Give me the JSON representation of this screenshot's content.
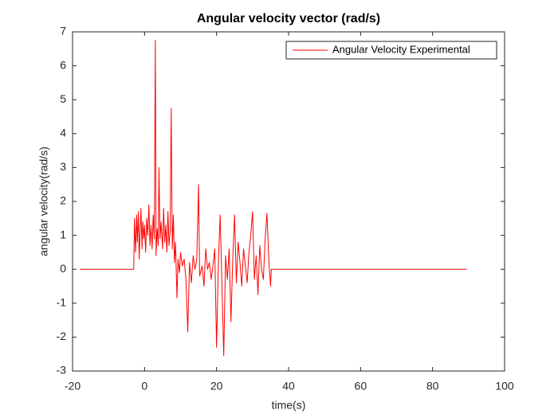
{
  "chart_data": {
    "type": "line",
    "title": "Angular velocity vector (rad/s)",
    "x_label": "time(s)",
    "y_label": "angular velocity(rad/s)",
    "x": [
      -18,
      -3,
      -2.8,
      -2.5,
      -2.2,
      -2,
      -1.7,
      -1.5,
      -1.2,
      -1,
      -0.7,
      -0.5,
      -0.2,
      0,
      0.3,
      0.6,
      0.9,
      1.2,
      1.5,
      1.8,
      2.1,
      2.4,
      2.7,
      3,
      3.2,
      3.5,
      3.8,
      4,
      4.3,
      4.6,
      5,
      5.3,
      5.6,
      5.9,
      6.2,
      6.5,
      6.8,
      7.1,
      7.4,
      7.7,
      8,
      8.3,
      8.6,
      9,
      9.3,
      9.7,
      10,
      10.5,
      11,
      11.5,
      12,
      12.5,
      13,
      13.5,
      14,
      14.5,
      15,
      15.3,
      16,
      16.5,
      17,
      17.5,
      18,
      18.5,
      19,
      19.5,
      20,
      20.5,
      21,
      21.5,
      22,
      22.5,
      23,
      23.5,
      24,
      24.5,
      25,
      25.5,
      26,
      26.5,
      27,
      27.5,
      28,
      28.5,
      29,
      29.5,
      30,
      30.5,
      31,
      31.5,
      32,
      32.5,
      33,
      33.5,
      34,
      34.5,
      35,
      35.2,
      89.5
    ],
    "series": [
      {
        "name": "Angular Velocity Experimental",
        "color": "#ff0000",
        "values": [
          0,
          0,
          1.5,
          0.5,
          1.6,
          0.8,
          1.7,
          0.3,
          1.2,
          1.8,
          0.6,
          1.4,
          0.9,
          1.3,
          0.5,
          1.5,
          1.0,
          1.9,
          0.7,
          1.3,
          0.6,
          1.6,
          0.9,
          6.75,
          0.4,
          1.2,
          0.7,
          3.0,
          0.9,
          1.4,
          0.6,
          1.8,
          0.8,
          1.3,
          0.5,
          1.7,
          0.7,
          1.1,
          4.75,
          0.6,
          1.6,
          0.2,
          0.8,
          -0.85,
          0.3,
          -0.1,
          0.5,
          0.1,
          0.3,
          -0.3,
          -1.85,
          0.2,
          -0.4,
          0.4,
          0,
          0.3,
          2.5,
          -0.2,
          0.1,
          -0.5,
          0.6,
          0,
          0.2,
          -0.3,
          0.1,
          0.6,
          -2.3,
          0.2,
          1.6,
          -0.5,
          -2.55,
          0.4,
          -0.3,
          0.6,
          -1.55,
          0.3,
          1.6,
          -0.4,
          0.8,
          0.2,
          -0.5,
          0.6,
          0.1,
          -0.4,
          0.5,
          1.0,
          1.7,
          -0.3,
          0.4,
          -0.75,
          0.7,
          0,
          -0.3,
          0.9,
          1.65,
          0.3,
          -0.5,
          0,
          0
        ]
      }
    ],
    "xlim": [
      -20,
      100
    ],
    "xticks": [
      -20,
      0,
      20,
      40,
      60,
      80,
      100
    ],
    "ylim": [
      -3,
      7
    ],
    "yticks": [
      -3,
      -2,
      -1,
      0,
      1,
      2,
      3,
      4,
      5,
      6,
      7
    ],
    "grid": false,
    "legend": "top-right"
  }
}
